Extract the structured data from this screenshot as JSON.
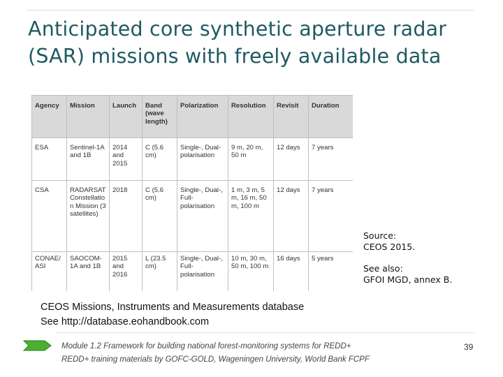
{
  "slide": {
    "title_line1": "Anticipated core synthetic aperture radar",
    "title_line2": "(SAR) missions with freely available data"
  },
  "table": {
    "headers": [
      "Agency",
      "Mission",
      "Launch",
      "Band (wave length)",
      "Polarization",
      "Resolution",
      "Revisit",
      "Duration"
    ],
    "rows": [
      [
        "ESA",
        "Sentinel-1A and 1B",
        "2014 and 2015",
        "C (5.6 cm)",
        "Single-, Dual-polarisation",
        "9 m, 20 m, 50 m",
        "12 days",
        "7 years"
      ],
      [
        "CSA",
        "RADARSAT Constellation Mission (3 satellites)",
        "2018",
        "C (5.6 cm)",
        "Single-, Dual-, Full-polarisation",
        "1 m, 3 m, 5 m, 16 m, 50 m, 100 m",
        "12 days",
        "7 years"
      ],
      [
        "CONAE/ASI",
        "SAOCOM-1A and 1B",
        "2015 and 2016",
        "L (23.5 cm)",
        "Single-, Dual-, Full-polarisation",
        "10 m, 30 m, 50 m, 100 m",
        "16 days",
        "5 years"
      ]
    ]
  },
  "source": {
    "label": "Source:",
    "citation": "CEOS 2015.",
    "see_also_label": "See also:",
    "see_also_text": "GFOI MGD, annex B."
  },
  "ceos": {
    "line1": "CEOS Missions, Instruments and Measurements database",
    "line2": "See http://database.eohandbook.com"
  },
  "footer": {
    "line1": "Module 1.2 Framework for building national forest-monitoring systems for REDD+",
    "line2": "REDD+ training materials by GOFC-GOLD, Wageningen University, World Bank FCPF",
    "page_number": "39",
    "icon": "green-arrow-icon",
    "accent_color": "#4caf2f"
  }
}
